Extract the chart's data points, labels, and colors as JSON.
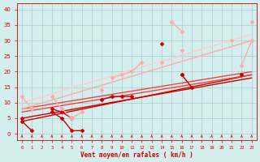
{
  "x": [
    0,
    1,
    2,
    3,
    4,
    5,
    6,
    7,
    8,
    9,
    10,
    11,
    12,
    13,
    14,
    15,
    16,
    17,
    18,
    19,
    20,
    21,
    22,
    23
  ],
  "series": [
    {
      "y": [
        4,
        1,
        null,
        7,
        5,
        1,
        1,
        null,
        null,
        null,
        null,
        null,
        null,
        null,
        29,
        null,
        19,
        15,
        null,
        null,
        null,
        null,
        null,
        null
      ],
      "color": "#cc0000",
      "lw": 1.0,
      "marker": "D",
      "ms": 2.0,
      "connect": false
    },
    {
      "y": [
        5,
        null,
        null,
        8,
        7,
        5,
        null,
        null,
        11,
        12,
        12,
        12,
        null,
        null,
        null,
        null,
        19,
        null,
        null,
        null,
        null,
        null,
        19,
        null
      ],
      "color": "#cc0000",
      "lw": 1.0,
      "marker": "D",
      "ms": 2.0,
      "connect": false
    },
    {
      "y": [
        12,
        8,
        null,
        12,
        8,
        5,
        7,
        null,
        14,
        null,
        null,
        null,
        null,
        null,
        null,
        36,
        33,
        null,
        null,
        null,
        null,
        30,
        null,
        36
      ],
      "color": "#ffaaaa",
      "lw": 1.0,
      "marker": "D",
      "ms": 2.0,
      "connect": false
    },
    {
      "y": [
        null,
        8,
        null,
        null,
        null,
        5,
        null,
        null,
        null,
        18,
        19,
        20,
        23,
        null,
        23,
        null,
        27,
        null,
        null,
        null,
        null,
        null,
        22,
        30
      ],
      "color": "#ffaaaa",
      "lw": 1.0,
      "marker": "D",
      "ms": 2.0,
      "connect": false
    }
  ],
  "trend_lines": [
    {
      "x0": 0,
      "y0": 4,
      "x1": 23,
      "y1": 19,
      "color": "#cc0000",
      "lw": 1.0
    },
    {
      "x0": 0,
      "y0": 5,
      "x1": 23,
      "y1": 18,
      "color": "#cc0000",
      "lw": 1.0
    },
    {
      "x0": 0,
      "y0": 7,
      "x1": 23,
      "y1": 19,
      "color": "#ee4444",
      "lw": 1.0
    },
    {
      "x0": 0,
      "y0": 8,
      "x1": 23,
      "y1": 20,
      "color": "#ee4444",
      "lw": 1.0
    },
    {
      "x0": 0,
      "y0": 8,
      "x1": 23,
      "y1": 30,
      "color": "#ffaaaa",
      "lw": 1.0
    },
    {
      "x0": 0,
      "y0": 10,
      "x1": 23,
      "y1": 32,
      "color": "#ffcccc",
      "lw": 1.0
    }
  ],
  "xlabel": "Vent moyen/en rafales ( km/h )",
  "ylim": [
    -2,
    42
  ],
  "xlim": [
    -0.5,
    23.5
  ],
  "yticks": [
    0,
    5,
    10,
    15,
    20,
    25,
    30,
    35,
    40
  ],
  "xticks": [
    0,
    1,
    2,
    3,
    4,
    5,
    6,
    7,
    8,
    9,
    10,
    11,
    12,
    13,
    14,
    15,
    16,
    17,
    18,
    19,
    20,
    21,
    22,
    23
  ],
  "bg_color": "#d4eeee",
  "grid_color": "#aacccc",
  "axis_color": "#cc0000",
  "tick_color": "#cc0000",
  "label_color": "#cc0000",
  "arrow_color": "#cc0000"
}
